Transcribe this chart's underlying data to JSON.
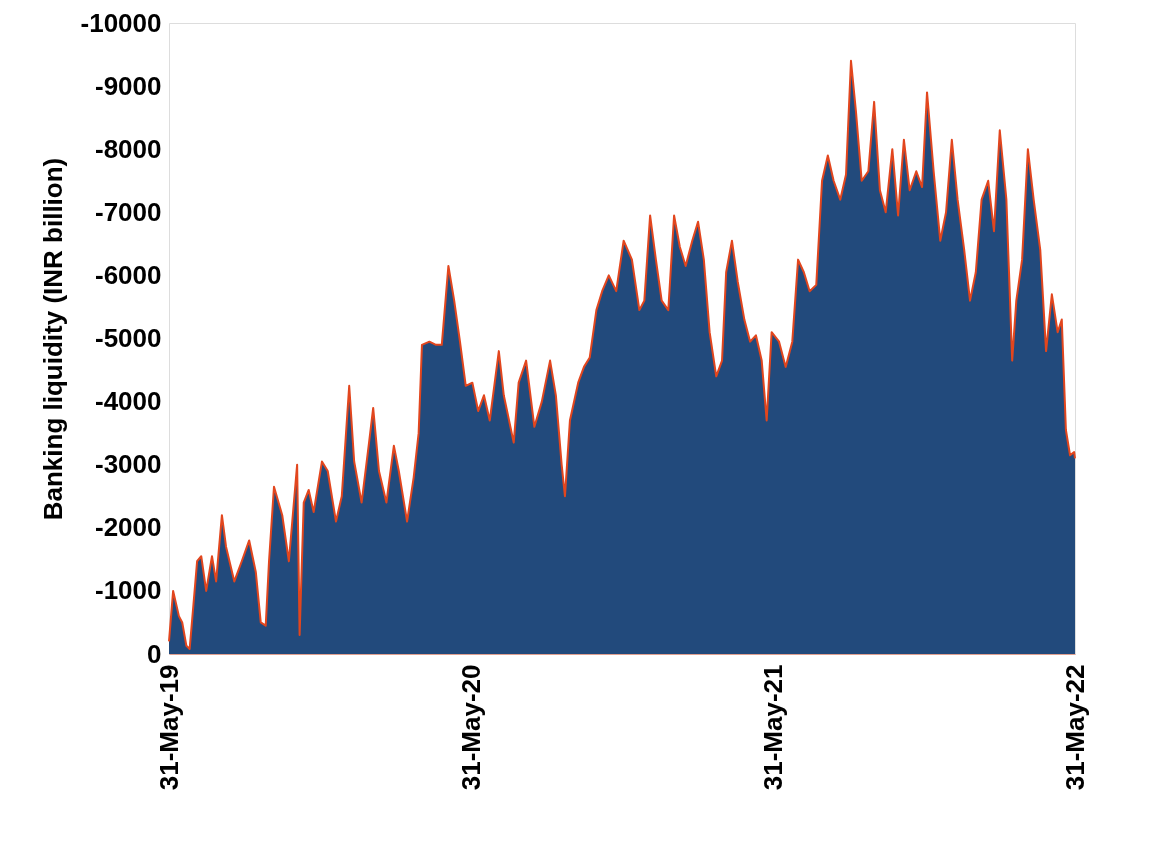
{
  "chart_data": {
    "type": "area",
    "ylabel": "Banking liquidity (INR billion)",
    "x": [
      "2019-05-31",
      "2019-06-05",
      "2019-06-12",
      "2019-06-16",
      "2019-06-21",
      "2019-06-25",
      "2019-06-30",
      "2019-07-04",
      "2019-07-09",
      "2019-07-15",
      "2019-07-22",
      "2019-07-27",
      "2019-08-03",
      "2019-08-08",
      "2019-08-18",
      "2019-08-27",
      "2019-09-05",
      "2019-09-13",
      "2019-09-19",
      "2019-09-25",
      "2019-09-29",
      "2019-10-05",
      "2019-10-15",
      "2019-10-23",
      "2019-11-02",
      "2019-11-05",
      "2019-11-10",
      "2019-11-16",
      "2019-11-22",
      "2019-12-02",
      "2019-12-09",
      "2019-12-19",
      "2019-12-26",
      "2020-01-04",
      "2020-01-10",
      "2020-01-19",
      "2020-01-28",
      "2020-02-02",
      "2020-02-09",
      "2020-02-18",
      "2020-02-27",
      "2020-03-04",
      "2020-03-14",
      "2020-03-22",
      "2020-03-28",
      "2020-04-01",
      "2020-04-10",
      "2020-04-18",
      "2020-04-25",
      "2020-05-03",
      "2020-05-10",
      "2020-05-17",
      "2020-05-24",
      "2020-06-01",
      "2020-06-08",
      "2020-06-15",
      "2020-06-22",
      "2020-07-03",
      "2020-07-09",
      "2020-07-21",
      "2020-07-27",
      "2020-08-05",
      "2020-08-15",
      "2020-08-24",
      "2020-09-03",
      "2020-09-10",
      "2020-09-17",
      "2020-09-21",
      "2020-09-27",
      "2020-10-07",
      "2020-10-14",
      "2020-10-21",
      "2020-10-29",
      "2020-11-05",
      "2020-11-13",
      "2020-11-22",
      "2020-12-01",
      "2020-12-11",
      "2020-12-20",
      "2020-12-26",
      "2021-01-02",
      "2021-01-09",
      "2021-01-16",
      "2021-01-24",
      "2021-01-31",
      "2021-02-07",
      "2021-02-14",
      "2021-02-22",
      "2021-03-01",
      "2021-03-08",
      "2021-03-15",
      "2021-03-23",
      "2021-03-30",
      "2021-04-04",
      "2021-04-11",
      "2021-04-18",
      "2021-04-26",
      "2021-05-03",
      "2021-05-10",
      "2021-05-17",
      "2021-05-23",
      "2021-05-29",
      "2021-06-07",
      "2021-06-15",
      "2021-06-23",
      "2021-06-30",
      "2021-07-07",
      "2021-07-14",
      "2021-07-22",
      "2021-07-29",
      "2021-08-05",
      "2021-08-12",
      "2021-08-20",
      "2021-08-27",
      "2021-09-02",
      "2021-09-08",
      "2021-09-15",
      "2021-09-23",
      "2021-09-30",
      "2021-10-07",
      "2021-10-14",
      "2021-10-22",
      "2021-10-29",
      "2021-11-05",
      "2021-11-12",
      "2021-11-20",
      "2021-11-27",
      "2021-12-03",
      "2021-12-11",
      "2021-12-19",
      "2021-12-26",
      "2022-01-02",
      "2022-01-09",
      "2022-01-17",
      "2022-01-24",
      "2022-01-31",
      "2022-02-07",
      "2022-02-15",
      "2022-02-22",
      "2022-03-01",
      "2022-03-09",
      "2022-03-16",
      "2022-03-21",
      "2022-03-28",
      "2022-04-04",
      "2022-04-11",
      "2022-04-19",
      "2022-04-26",
      "2022-05-03",
      "2022-05-10",
      "2022-05-15",
      "2022-05-20",
      "2022-05-25",
      "2022-05-30",
      "2022-05-31"
    ],
    "series": [
      {
        "color": "#224a7c",
        "values": [
          -200,
          -1000,
          -600,
          -500,
          -130,
          -80,
          -850,
          -1470,
          -1550,
          -1000,
          -1550,
          -1150,
          -2200,
          -1700,
          -1150,
          -1470,
          -1800,
          -1300,
          -500,
          -450,
          -1470,
          -2650,
          -2200,
          -1470,
          -3000,
          -300,
          -2400,
          -2600,
          -2250,
          -3050,
          -2900,
          -2100,
          -2500,
          -4250,
          -3050,
          -2400,
          -3350,
          -3900,
          -2900,
          -2400,
          -3300,
          -2900,
          -2100,
          -2800,
          -3500,
          -4900,
          -4950,
          -4900,
          -4900,
          -6150,
          -5600,
          -4950,
          -4250,
          -4300,
          -3850,
          -4100,
          -3700,
          -4800,
          -4100,
          -3350,
          -4300,
          -4650,
          -3600,
          -4000,
          -4650,
          -4100,
          -3000,
          -2500,
          -3700,
          -4300,
          -4550,
          -4700,
          -5450,
          -5750,
          -6000,
          -5750,
          -6550,
          -6250,
          -5450,
          -5600,
          -6950,
          -6250,
          -5600,
          -5450,
          -6950,
          -6450,
          -6150,
          -6550,
          -6850,
          -6250,
          -5100,
          -4400,
          -4650,
          -6050,
          -6550,
          -5900,
          -5300,
          -4950,
          -5050,
          -4650,
          -3700,
          -5100,
          -4950,
          -4550,
          -4950,
          -6250,
          -6050,
          -5750,
          -5850,
          -7500,
          -7900,
          -7500,
          -7200,
          -7600,
          -9400,
          -8600,
          -7500,
          -7650,
          -8750,
          -7350,
          -7000,
          -8000,
          -6950,
          -8150,
          -7350,
          -7650,
          -7400,
          -8900,
          -7650,
          -6550,
          -7000,
          -8150,
          -7200,
          -6400,
          -5600,
          -6050,
          -7200,
          -7500,
          -6700,
          -8300,
          -7200,
          -4650,
          -5600,
          -6250,
          -8000,
          -7200,
          -6400,
          -4800,
          -5700,
          -5100,
          -5300,
          -3550,
          -3150,
          -3200,
          -3100
        ]
      },
      {
        "type": "line",
        "color": "#e2461e",
        "values": [
          -200,
          -1000,
          -600,
          -500,
          -130,
          -80,
          -850,
          -1470,
          -1550,
          -1000,
          -1550,
          -1150,
          -2200,
          -1700,
          -1150,
          -1470,
          -1800,
          -1300,
          -500,
          -450,
          -1470,
          -2650,
          -2200,
          -1470,
          -3000,
          -300,
          -2400,
          -2600,
          -2250,
          -3050,
          -2900,
          -2100,
          -2500,
          -4250,
          -3050,
          -2400,
          -3350,
          -3900,
          -2900,
          -2400,
          -3300,
          -2900,
          -2100,
          -2800,
          -3500,
          -4900,
          -4950,
          -4900,
          -4900,
          -6150,
          -5600,
          -4950,
          -4250,
          -4300,
          -3850,
          -4100,
          -3700,
          -4800,
          -4100,
          -3350,
          -4300,
          -4650,
          -3600,
          -4000,
          -4650,
          -4100,
          -3000,
          -2500,
          -3700,
          -4300,
          -4550,
          -4700,
          -5450,
          -5750,
          -6000,
          -5750,
          -6550,
          -6250,
          -5450,
          -5600,
          -6950,
          -6250,
          -5600,
          -5450,
          -6950,
          -6450,
          -6150,
          -6550,
          -6850,
          -6250,
          -5100,
          -4400,
          -4650,
          -6050,
          -6550,
          -5900,
          -5300,
          -4950,
          -5050,
          -4650,
          -3700,
          -5100,
          -4950,
          -4550,
          -4950,
          -6250,
          -6050,
          -5750,
          -5850,
          -7500,
          -7900,
          -7500,
          -7200,
          -7600,
          -9400,
          -8600,
          -7500,
          -7650,
          -8750,
          -7350,
          -7000,
          -8000,
          -6950,
          -8150,
          -7350,
          -7650,
          -7400,
          -8900,
          -7650,
          -6550,
          -7000,
          -8150,
          -7200,
          -6400,
          -5600,
          -6050,
          -7200,
          -7500,
          -6700,
          -8300,
          -7200,
          -4650,
          -5600,
          -6250,
          -8000,
          -7200,
          -6400,
          -4800,
          -5700,
          -5100,
          -5300,
          -3550,
          -3150,
          -3200,
          -3100
        ]
      }
    ],
    "xlim": [
      "2019-05-31",
      "2022-05-31"
    ],
    "xticks": [
      {
        "value": "2019-05-31",
        "label": "31-May-19"
      },
      {
        "value": "2020-05-31",
        "label": "31-May-20"
      },
      {
        "value": "2021-05-31",
        "label": "31-May-21"
      },
      {
        "value": "2022-05-31",
        "label": "31-May-22"
      }
    ],
    "ylim": [
      0,
      -10000
    ],
    "yticks": [
      0,
      -1000,
      -2000,
      -3000,
      -4000,
      -5000,
      -6000,
      -7000,
      -8000,
      -9000,
      -10000
    ],
    "grid": false
  }
}
